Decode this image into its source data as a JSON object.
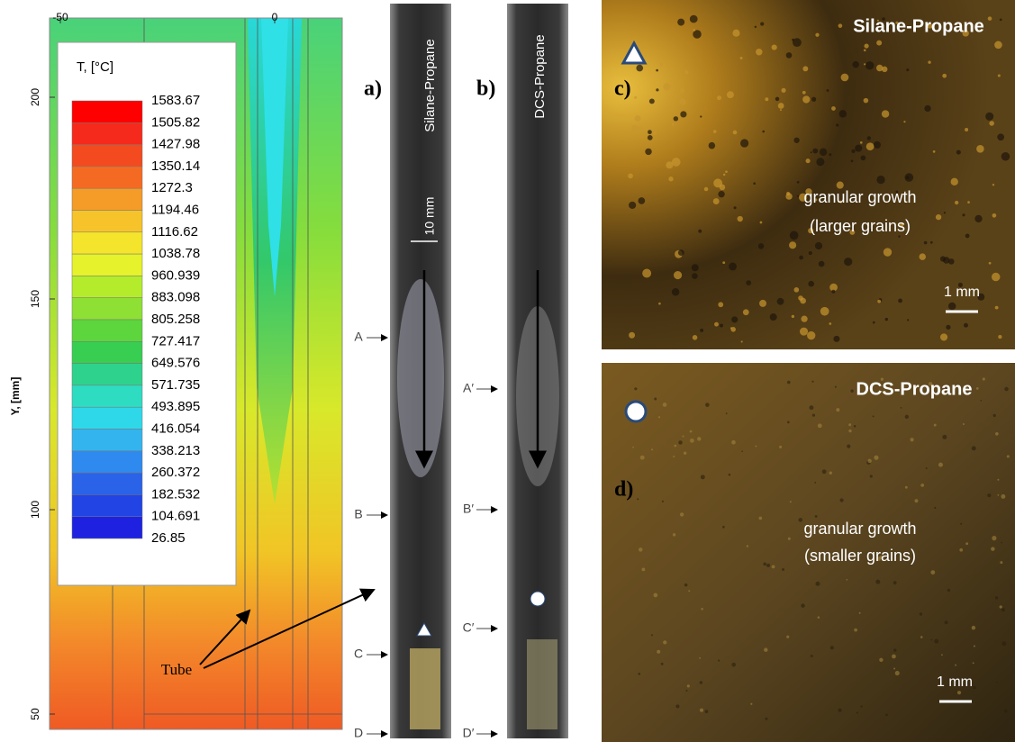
{
  "contour": {
    "x_ticks": [
      -50,
      0
    ],
    "y_ticks": [
      200,
      150,
      100,
      50
    ],
    "y_label": "Y, [mm]",
    "legend": {
      "title": "T, [°C]",
      "levels": [
        1583.67,
        1505.82,
        1427.98,
        1350.14,
        1272.3,
        1194.46,
        1116.62,
        1038.78,
        960.939,
        883.098,
        805.258,
        727.417,
        649.576,
        571.735,
        493.895,
        416.054,
        338.213,
        260.372,
        182.532,
        104.691,
        26.85
      ]
    },
    "annotation": "Tube"
  },
  "panel_a": {
    "label": "a)",
    "tube_title": "Silane-Propane",
    "dimension": "10 mm",
    "markers": [
      "A",
      "B",
      "C",
      "D"
    ]
  },
  "panel_b": {
    "label": "b)",
    "tube_title": "DCS-Propane",
    "markers": [
      "A′",
      "B′",
      "C′",
      "D′"
    ]
  },
  "panel_c": {
    "label": "c)",
    "title": "Silane-Propane",
    "caption": [
      "granular growth",
      "(larger grains)"
    ],
    "scale": "1 mm"
  },
  "panel_d": {
    "label": "d)",
    "title": "DCS-Propane",
    "caption": [
      "granular growth",
      "(smaller grains)"
    ],
    "scale": "1 mm"
  }
}
